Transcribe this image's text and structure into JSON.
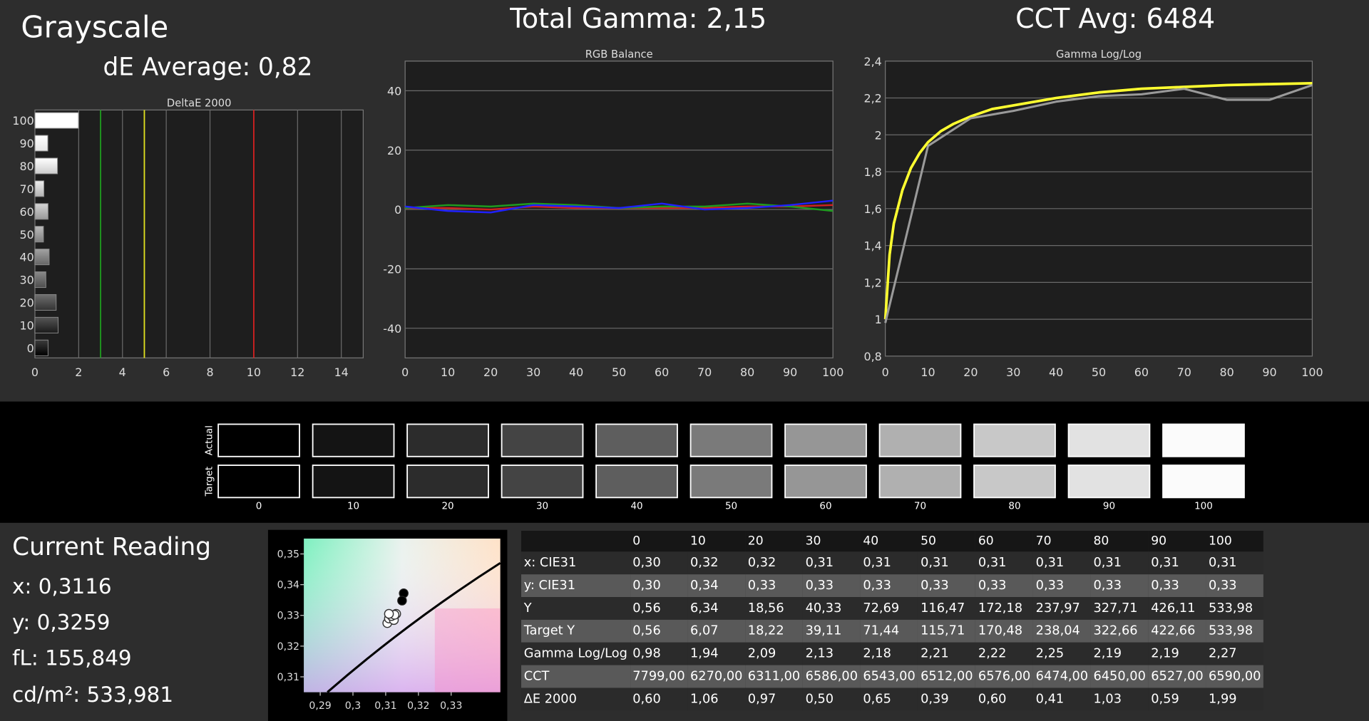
{
  "header": {
    "title": "Grayscale",
    "de_average": "dE Average: 0,82",
    "total_gamma": "Total Gamma: 2,15",
    "cct_avg": "CCT Avg: 6484"
  },
  "colors": {
    "green": "#1f9a1f",
    "yellow": "#e0e020",
    "red": "#d02020",
    "blue": "#2020ff",
    "gamma_target": "#ffff30",
    "gamma_actual": "#9a9a9a"
  },
  "chart_data": [
    {
      "type": "bar",
      "title": "DeltaE 2000",
      "orientation": "horizontal",
      "categories": [
        "100",
        "90",
        "80",
        "70",
        "60",
        "50",
        "40",
        "30",
        "20",
        "10",
        "0"
      ],
      "values": [
        1.99,
        0.59,
        1.03,
        0.41,
        0.6,
        0.39,
        0.65,
        0.5,
        0.97,
        1.06,
        0.6
      ],
      "xlim": [
        0,
        15
      ],
      "x_ticks": [
        "0",
        "2",
        "4",
        "6",
        "8",
        "10",
        "12",
        "14"
      ],
      "threshold_lines": [
        {
          "x": 3,
          "color": "green"
        },
        {
          "x": 5,
          "color": "yellow"
        },
        {
          "x": 10,
          "color": "red"
        }
      ],
      "grid": true
    },
    {
      "type": "line",
      "title": "RGB Balance",
      "x": [
        0,
        10,
        20,
        30,
        40,
        50,
        60,
        70,
        80,
        90,
        100
      ],
      "ylim": [
        -50,
        50
      ],
      "y_ticks": [
        "40",
        "20",
        "0",
        "-20",
        "-40"
      ],
      "x_ticks": [
        "0",
        "10",
        "20",
        "30",
        "40",
        "50",
        "60",
        "70",
        "80",
        "90",
        "100"
      ],
      "series": [
        {
          "color": "red",
          "values": [
            0.5,
            0.5,
            0,
            1.0,
            0.5,
            0.5,
            0.5,
            0.5,
            1.0,
            1.0,
            1.5
          ]
        },
        {
          "color": "green",
          "values": [
            0.5,
            1.5,
            1.0,
            2.0,
            1.5,
            0.5,
            1.0,
            1.0,
            2.0,
            1.0,
            -0.5
          ]
        },
        {
          "color": "blue",
          "values": [
            1.0,
            -0.5,
            -1.0,
            1.5,
            1.0,
            0.5,
            2.0,
            0,
            0.5,
            1.5,
            3.0
          ]
        }
      ],
      "grid": true
    },
    {
      "type": "line",
      "title": "Gamma Log/Log",
      "ylim": [
        0.8,
        2.4
      ],
      "y_ticks": [
        "2,4",
        "2,2",
        "2",
        "1,8",
        "1,6",
        "1,4",
        "1,2",
        "1",
        "0,8"
      ],
      "x_ticks": [
        "0",
        "10",
        "20",
        "30",
        "40",
        "50",
        "60",
        "70",
        "80",
        "90",
        "100"
      ],
      "series": [
        {
          "color": "gamma_target",
          "x": [
            0,
            1,
            2,
            4,
            6,
            8,
            10,
            13,
            16,
            20,
            25,
            30,
            40,
            50,
            60,
            70,
            80,
            90,
            100
          ],
          "values": [
            1.0,
            1.35,
            1.52,
            1.7,
            1.82,
            1.9,
            1.96,
            2.02,
            2.06,
            2.1,
            2.14,
            2.16,
            2.2,
            2.23,
            2.25,
            2.26,
            2.27,
            2.275,
            2.28
          ]
        },
        {
          "color": "gamma_actual",
          "x": [
            0,
            10,
            20,
            30,
            40,
            50,
            60,
            70,
            80,
            90,
            100
          ],
          "values": [
            0.98,
            1.94,
            2.09,
            2.13,
            2.18,
            2.21,
            2.22,
            2.25,
            2.19,
            2.19,
            2.27
          ]
        }
      ],
      "grid": true
    },
    {
      "type": "scatter",
      "title": "",
      "xlim": [
        0.285,
        0.345
      ],
      "ylim": [
        0.305,
        0.355
      ],
      "x_ticks": [
        "0,29",
        "0,3",
        "0,31",
        "0,32",
        "0,33"
      ],
      "y_ticks": [
        "0,35",
        "0,34",
        "0,33",
        "0,32",
        "0,31"
      ],
      "points_filled": [
        [
          0.3155,
          0.3372
        ],
        [
          0.315,
          0.3348
        ]
      ],
      "points_hollow": [
        [
          0.312,
          0.3295
        ],
        [
          0.3132,
          0.3305
        ],
        [
          0.3105,
          0.3275
        ],
        [
          0.311,
          0.329
        ],
        [
          0.3125,
          0.3285
        ],
        [
          0.3118,
          0.3298
        ],
        [
          0.3127,
          0.3302
        ],
        [
          0.311,
          0.3305
        ]
      ]
    }
  ],
  "swatches": {
    "row_labels": [
      "Actual",
      "Target"
    ],
    "labels": [
      "0",
      "10",
      "20",
      "30",
      "40",
      "50",
      "60",
      "70",
      "80",
      "90",
      "100"
    ],
    "actual": [
      "#000000",
      "#141414",
      "#2c2c2c",
      "#444444",
      "#5e5e5e",
      "#7a7a7a",
      "#969696",
      "#b0b0b0",
      "#c8c8c8",
      "#e2e2e2",
      "#fbfbfb"
    ],
    "target": [
      "#000000",
      "#141414",
      "#2c2c2c",
      "#444444",
      "#5e5e5e",
      "#7a7a7a",
      "#969696",
      "#b0b0b0",
      "#c8c8c8",
      "#e2e2e2",
      "#fbfbfb"
    ]
  },
  "reading": {
    "title": "Current Reading",
    "x": "x: 0,3116",
    "y": "y: 0,3259",
    "fl": "fL: 155,849",
    "cd": "cd/m²: 533,981"
  },
  "table": {
    "columns": [
      "0",
      "10",
      "20",
      "30",
      "40",
      "50",
      "60",
      "70",
      "80",
      "90",
      "100"
    ],
    "rows": [
      {
        "label": "x: CIE31",
        "values": [
          "0,30",
          "0,32",
          "0,32",
          "0,31",
          "0,31",
          "0,31",
          "0,31",
          "0,31",
          "0,31",
          "0,31",
          "0,31"
        ]
      },
      {
        "label": "y: CIE31",
        "values": [
          "0,30",
          "0,34",
          "0,33",
          "0,33",
          "0,33",
          "0,33",
          "0,33",
          "0,33",
          "0,33",
          "0,33",
          "0,33"
        ]
      },
      {
        "label": "Y",
        "values": [
          "0,56",
          "6,34",
          "18,56",
          "40,33",
          "72,69",
          "116,47",
          "172,18",
          "237,97",
          "327,71",
          "426,11",
          "533,98"
        ]
      },
      {
        "label": "Target Y",
        "values": [
          "0,56",
          "6,07",
          "18,22",
          "39,11",
          "71,44",
          "115,71",
          "170,48",
          "238,04",
          "322,66",
          "422,66",
          "533,98"
        ]
      },
      {
        "label": "Gamma Log/Log",
        "values": [
          "0,98",
          "1,94",
          "2,09",
          "2,13",
          "2,18",
          "2,21",
          "2,22",
          "2,25",
          "2,19",
          "2,19",
          "2,27"
        ]
      },
      {
        "label": "CCT",
        "values": [
          "7799,00",
          "6270,00",
          "6311,00",
          "6586,00",
          "6543,00",
          "6512,00",
          "6576,00",
          "6474,00",
          "6450,00",
          "6527,00",
          "6590,00"
        ]
      },
      {
        "label": "ΔE 2000",
        "values": [
          "0,60",
          "1,06",
          "0,97",
          "0,50",
          "0,65",
          "0,39",
          "0,60",
          "0,41",
          "1,03",
          "0,59",
          "1,99"
        ]
      }
    ]
  }
}
